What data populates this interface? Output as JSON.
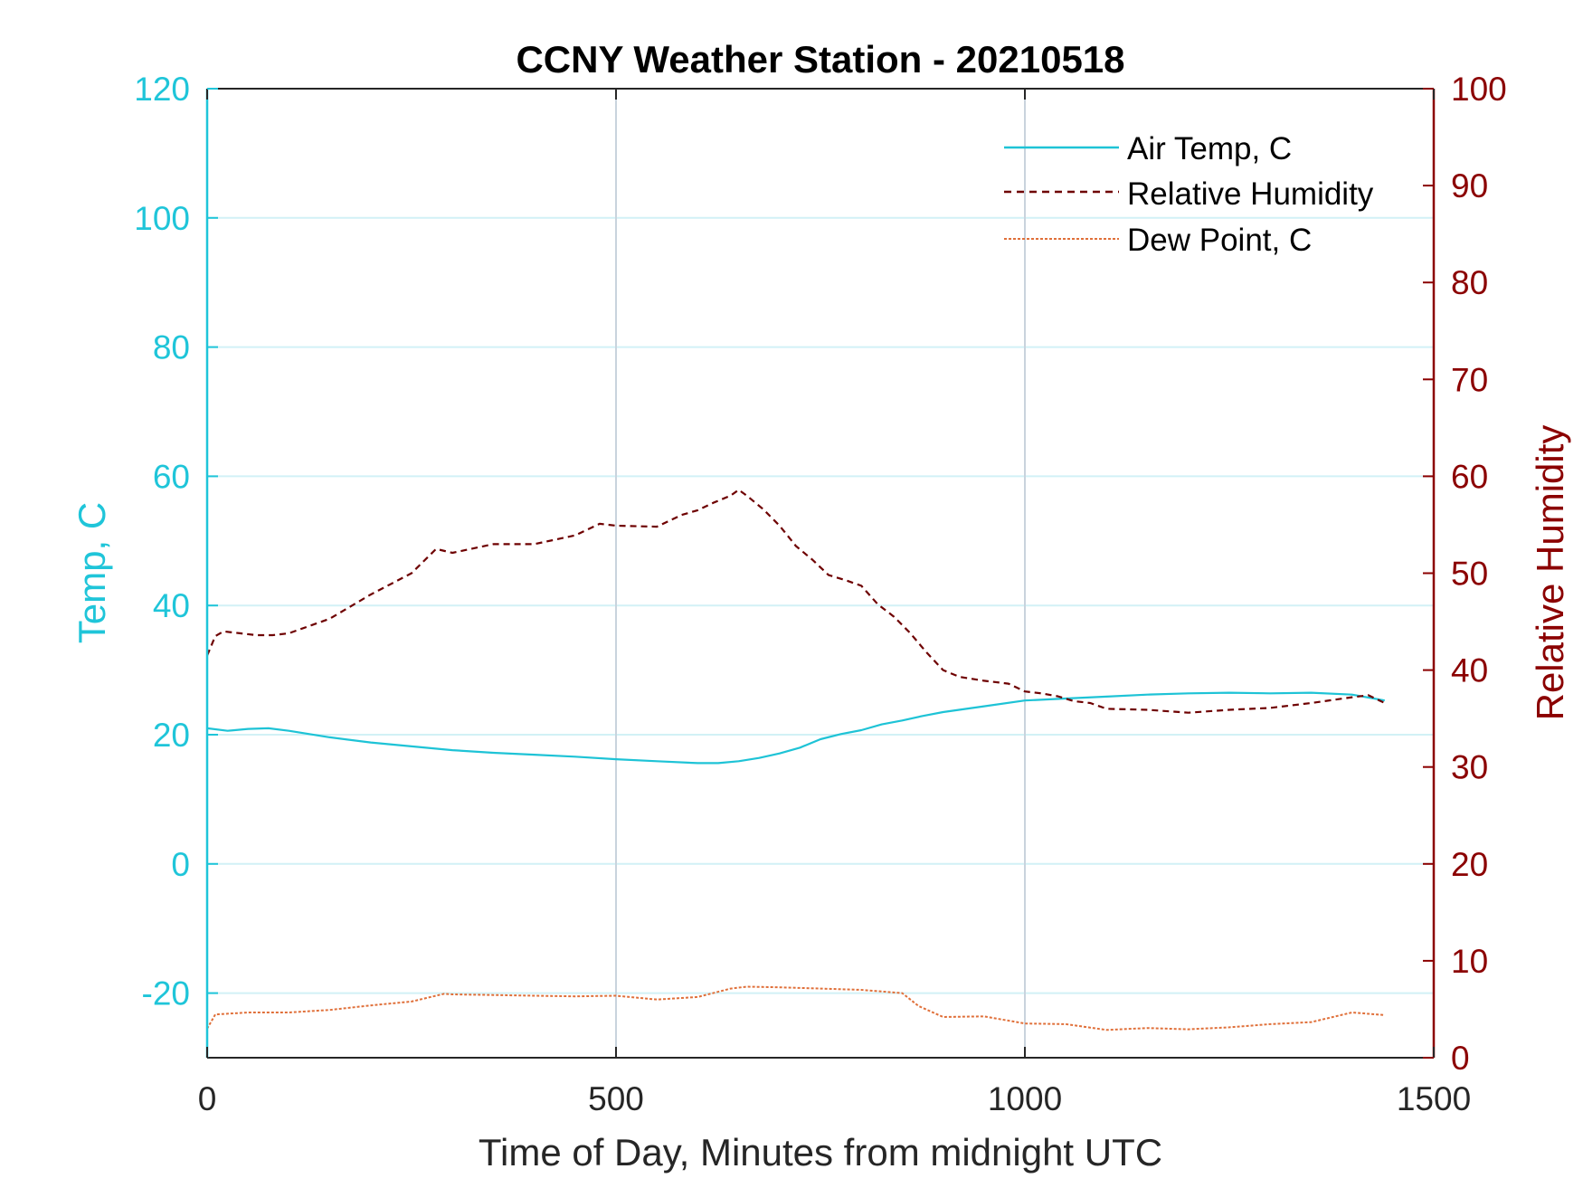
{
  "chart_data": {
    "type": "line",
    "title": "CCNY Weather Station - 20210518",
    "xlabel": "Time of Day, Minutes from midnight UTC",
    "ylabel_left": "Temp, C",
    "ylabel_right": "Relative Humidity",
    "xlim": [
      0,
      1500
    ],
    "ylim_left": [
      -30,
      120
    ],
    "ylim_right": [
      0,
      100
    ],
    "x_ticks": [
      0,
      500,
      1000,
      1500
    ],
    "x_tick_labels": [
      "0",
      "500",
      "1000",
      "1500"
    ],
    "y_left_ticks": [
      -20,
      0,
      20,
      40,
      60,
      80,
      100,
      120
    ],
    "y_left_tick_labels": [
      "-20",
      "0",
      "20",
      "40",
      "60",
      "80",
      "100",
      "120"
    ],
    "y_right_ticks": [
      0,
      10,
      20,
      30,
      40,
      50,
      60,
      70,
      80,
      90,
      100
    ],
    "y_right_tick_labels": [
      "0",
      "10",
      "20",
      "30",
      "40",
      "50",
      "60",
      "70",
      "80",
      "90",
      "100"
    ],
    "grid": "on",
    "legend_position": "top-right",
    "colors": {
      "left_axis": "#1fc5d9",
      "right_axis": "#8b0000",
      "air_temp": "#1ec3d6",
      "humidity": "#6e0000",
      "dew_point": "#e0703a",
      "grid_y": "#d2f1f6",
      "grid_x": "#c9d3dd"
    },
    "series": [
      {
        "name": "Air Temp, C",
        "axis": "left",
        "style": "solid",
        "x": [
          0,
          25,
          50,
          75,
          100,
          150,
          200,
          250,
          300,
          350,
          400,
          450,
          500,
          550,
          600,
          625,
          650,
          675,
          700,
          725,
          750,
          775,
          800,
          825,
          850,
          875,
          900,
          950,
          1000,
          1050,
          1100,
          1150,
          1200,
          1250,
          1300,
          1350,
          1400,
          1440
        ],
        "y": [
          21.0,
          20.6,
          20.9,
          21.0,
          20.6,
          19.6,
          18.8,
          18.2,
          17.6,
          17.2,
          16.9,
          16.6,
          16.2,
          15.9,
          15.6,
          15.6,
          15.9,
          16.4,
          17.1,
          18.0,
          19.3,
          20.1,
          20.7,
          21.6,
          22.2,
          22.9,
          23.5,
          24.4,
          25.3,
          25.6,
          25.9,
          26.2,
          26.4,
          26.5,
          26.4,
          26.5,
          26.2,
          25.3
        ]
      },
      {
        "name": "Relative Humidity",
        "axis": "right",
        "style": "dashed",
        "x": [
          0,
          10,
          20,
          40,
          60,
          80,
          100,
          150,
          200,
          250,
          280,
          300,
          350,
          400,
          450,
          480,
          500,
          550,
          580,
          600,
          620,
          640,
          650,
          660,
          680,
          700,
          720,
          740,
          760,
          780,
          800,
          820,
          840,
          860,
          880,
          900,
          920,
          950,
          980,
          1000,
          1020,
          1040,
          1060,
          1080,
          1100,
          1150,
          1200,
          1250,
          1300,
          1350,
          1400,
          1420,
          1440
        ],
        "y": [
          41.5,
          43.5,
          44.0,
          43.8,
          43.6,
          43.6,
          43.8,
          45.3,
          47.8,
          50.0,
          52.5,
          52.1,
          53.0,
          53.0,
          53.9,
          55.1,
          54.9,
          54.8,
          56.0,
          56.5,
          57.3,
          58.0,
          58.6,
          58.0,
          56.6,
          54.9,
          52.8,
          51.4,
          49.8,
          49.3,
          48.7,
          46.8,
          45.5,
          43.8,
          41.8,
          40.0,
          39.3,
          38.9,
          38.6,
          37.8,
          37.6,
          37.3,
          36.8,
          36.6,
          36.0,
          35.9,
          35.6,
          35.9,
          36.1,
          36.6,
          37.2,
          37.4,
          36.6
        ]
      },
      {
        "name": "Dew Point, C",
        "axis": "left",
        "style": "dotted",
        "x": [
          0,
          10,
          50,
          100,
          150,
          200,
          250,
          290,
          300,
          350,
          400,
          450,
          500,
          550,
          600,
          640,
          660,
          700,
          750,
          800,
          850,
          870,
          900,
          950,
          1000,
          1050,
          1100,
          1150,
          1200,
          1250,
          1300,
          1350,
          1400,
          1440
        ],
        "y": [
          -25.5,
          -23.3,
          -23.0,
          -23.0,
          -22.6,
          -21.9,
          -21.3,
          -20.1,
          -20.2,
          -20.3,
          -20.4,
          -20.5,
          -20.4,
          -21.0,
          -20.6,
          -19.3,
          -19.0,
          -19.1,
          -19.3,
          -19.5,
          -20.0,
          -22.0,
          -23.7,
          -23.6,
          -24.7,
          -24.8,
          -25.7,
          -25.4,
          -25.6,
          -25.3,
          -24.8,
          -24.5,
          -23.0,
          -23.4
        ]
      }
    ]
  }
}
